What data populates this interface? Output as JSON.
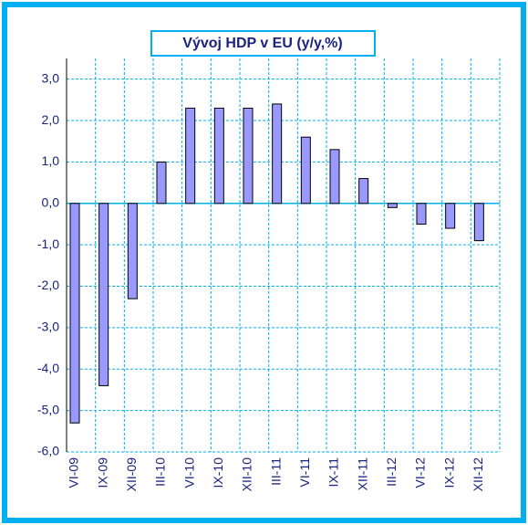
{
  "chart_data": {
    "type": "bar",
    "title": "Vývoj HDP v EU (y/y,%)",
    "categories": [
      "VI-09",
      "IX-09",
      "XII-09",
      "III-10",
      "VI-10",
      "IX-10",
      "XII-10",
      "III-11",
      "VI-11",
      "IX-11",
      "XII-11",
      "III-12",
      "VI-12",
      "IX-12",
      "XII-12"
    ],
    "values": [
      -5.3,
      -4.4,
      -2.3,
      1.0,
      2.3,
      2.3,
      2.3,
      2.4,
      1.6,
      1.3,
      0.6,
      -0.1,
      -0.5,
      -0.6,
      -0.9
    ],
    "color": "#9999ff",
    "ylim": [
      -6,
      3.5
    ],
    "yticks": [
      {
        "value": -6,
        "label": "-6,0"
      },
      {
        "value": -5,
        "label": "-5,0"
      },
      {
        "value": -4,
        "label": "-4,0"
      },
      {
        "value": -3,
        "label": "-3,0"
      },
      {
        "value": -2,
        "label": "-2,0"
      },
      {
        "value": -1,
        "label": "-1,0"
      },
      {
        "value": 0,
        "label": "0,0"
      },
      {
        "value": 1,
        "label": "1,0"
      },
      {
        "value": 2,
        "label": "2,0"
      },
      {
        "value": 3,
        "label": "3,0"
      }
    ],
    "grid": true
  }
}
